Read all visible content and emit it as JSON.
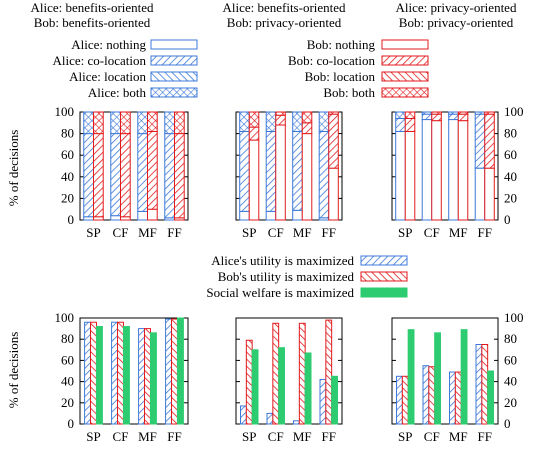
{
  "colors": {
    "alice": "#3c78d8",
    "bob": "#e31a1c",
    "social": "#2ecc71",
    "axis": "#000000"
  },
  "scenario_titles": [
    [
      "Alice: benefits-oriented",
      "Bob: benefits-oriented"
    ],
    [
      "Alice: benefits-oriented",
      "Bob: privacy-oriented"
    ],
    [
      "Alice: privacy-oriented",
      "Bob: privacy-oriented"
    ]
  ],
  "legend_top": {
    "alice": [
      "Alice: nothing",
      "Alice: co-location",
      "Alice: location",
      "Alice: both"
    ],
    "bob": [
      "Bob: nothing",
      "Bob: co-location",
      "Bob: location",
      "Bob: both"
    ]
  },
  "legend_bottom": [
    "Alice's utility is maximized",
    "Bob's utility is maximized",
    "Social welfare is maximized"
  ],
  "chart_data": [
    {
      "type": "bar",
      "subtype": "stacked-grouped",
      "ylabel": "% of decisions",
      "ylim": [
        0,
        100
      ],
      "yticks": [
        0,
        20,
        40,
        60,
        80,
        100
      ],
      "categories": [
        "SP",
        "CF",
        "MF",
        "FF"
      ],
      "stack_levels": [
        "nothing",
        "co-location",
        "location",
        "both"
      ],
      "panels": [
        {
          "alice": [
            [
              3,
              77,
              0,
              20
            ],
            [
              4,
              76,
              0,
              20
            ],
            [
              8,
              72,
              0,
              20
            ],
            [
              2,
              78,
              0,
              20
            ]
          ],
          "bob": [
            [
              3,
              77,
              0,
              20
            ],
            [
              3,
              77,
              0,
              20
            ],
            [
              10,
              72,
              0,
              18
            ],
            [
              2,
              78,
              0,
              20
            ]
          ]
        },
        {
          "alice": [
            [
              8,
              74,
              0,
              18
            ],
            [
              8,
              74,
              0,
              18
            ],
            [
              9,
              73,
              0,
              18
            ],
            [
              2,
              80,
              0,
              18
            ]
          ],
          "bob": [
            [
              74,
              12,
              0,
              14
            ],
            [
              88,
              9,
              0,
              3
            ],
            [
              80,
              10,
              0,
              10
            ],
            [
              48,
              50,
              0,
              2
            ]
          ]
        },
        {
          "alice": [
            [
              82,
              12,
              0,
              6
            ],
            [
              93,
              5,
              0,
              2
            ],
            [
              93,
              5,
              0,
              2
            ],
            [
              48,
              50,
              0,
              2
            ]
          ],
          "bob": [
            [
              82,
              12,
              0,
              6
            ],
            [
              92,
              6,
              0,
              2
            ],
            [
              92,
              6,
              0,
              2
            ],
            [
              48,
              50,
              0,
              2
            ]
          ]
        }
      ]
    },
    {
      "type": "bar",
      "subtype": "grouped",
      "ylabel": "% of decisions",
      "ylim": [
        0,
        100
      ],
      "yticks": [
        0,
        20,
        40,
        60,
        80,
        100
      ],
      "categories": [
        "SP",
        "CF",
        "MF",
        "FF"
      ],
      "series_order": [
        "alice",
        "bob",
        "social"
      ],
      "panels": [
        {
          "alice": [
            96,
            96,
            90,
            99
          ],
          "bob": [
            96,
            96,
            90,
            99
          ],
          "social": [
            92,
            92,
            86,
            100
          ]
        },
        {
          "alice": [
            17,
            10,
            3,
            42
          ],
          "bob": [
            79,
            95,
            95,
            98
          ],
          "social": [
            70,
            72,
            67,
            45
          ]
        },
        {
          "alice": [
            45,
            55,
            49,
            75
          ],
          "bob": [
            45,
            54,
            49,
            75
          ],
          "social": [
            89,
            86,
            89,
            50
          ]
        }
      ]
    }
  ]
}
